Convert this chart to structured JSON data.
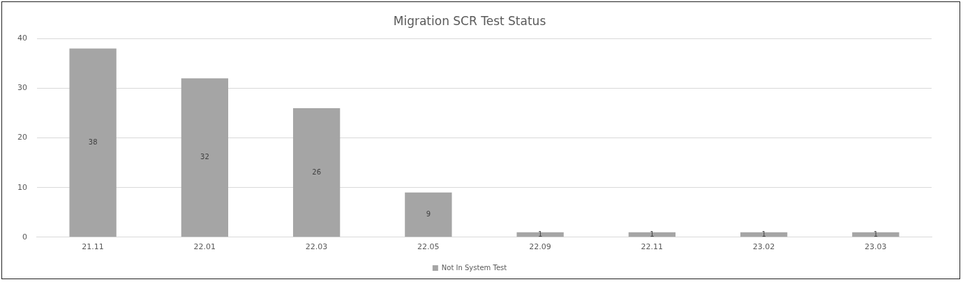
{
  "chart_data": {
    "type": "bar",
    "title": "Migration SCR Test Status",
    "categories": [
      "21.11",
      "22.01",
      "22.03",
      "22.05",
      "22.09",
      "22.11",
      "23.02",
      "23.03"
    ],
    "series": [
      {
        "name": "Not In System Test",
        "color": "#a5a5a5",
        "values": [
          38,
          32,
          26,
          9,
          1,
          1,
          1,
          1
        ]
      }
    ],
    "ylim": [
      0,
      40
    ],
    "yticks": [
      0,
      10,
      20,
      30,
      40
    ],
    "grid": "y",
    "legend": "bottom",
    "data_labels": true
  }
}
